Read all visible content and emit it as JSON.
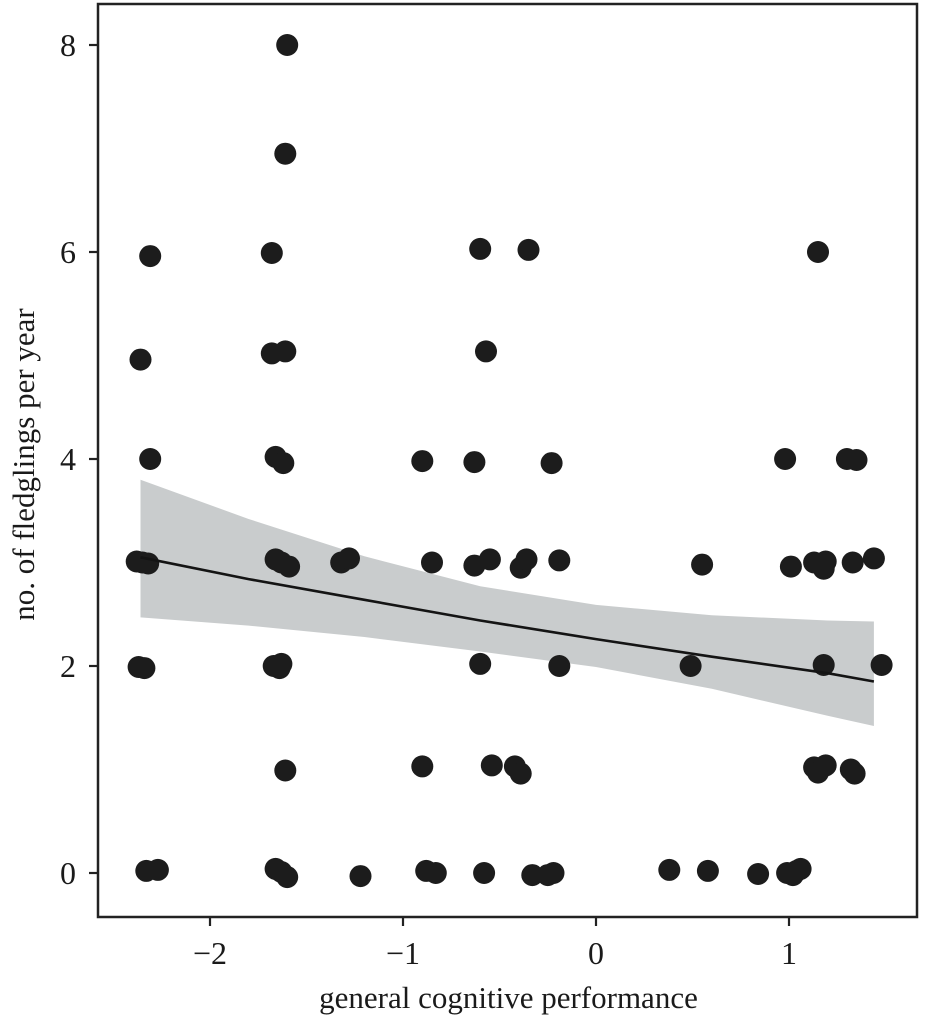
{
  "colors": {
    "points": "#1c1c1c",
    "line": "#141414",
    "ribbon": "#c9cccd",
    "frame": "#222222",
    "background": "#ffffff"
  },
  "chart_data": {
    "type": "scatter",
    "title": "",
    "xlabel": "general cognitive performance",
    "ylabel": "no. of fledglings per year",
    "xlim": [
      -2.55,
      1.65
    ],
    "ylim": [
      -0.4,
      8.3
    ],
    "xticks": [
      -2,
      -1,
      0,
      1
    ],
    "yticks": [
      0,
      2,
      4,
      6,
      8
    ],
    "xtick_labels": [
      "−2",
      "−1",
      "0",
      "1"
    ],
    "ytick_labels": [
      "0",
      "2",
      "4",
      "6",
      "8"
    ],
    "grid": false,
    "legend": "none",
    "series": [
      {
        "points": [
          {
            "x": -1.6,
            "y": 8.0
          },
          {
            "x": -1.61,
            "y": 6.95
          },
          {
            "x": -2.31,
            "y": 5.96
          },
          {
            "x": -1.68,
            "y": 5.99
          },
          {
            "x": -0.6,
            "y": 6.03
          },
          {
            "x": -0.35,
            "y": 6.02
          },
          {
            "x": 1.15,
            "y": 6.0
          },
          {
            "x": -2.36,
            "y": 4.96
          },
          {
            "x": -1.68,
            "y": 5.02
          },
          {
            "x": -1.61,
            "y": 5.04
          },
          {
            "x": -0.57,
            "y": 5.04
          },
          {
            "x": -2.31,
            "y": 4.0
          },
          {
            "x": -1.66,
            "y": 4.02
          },
          {
            "x": -1.62,
            "y": 3.96
          },
          {
            "x": -0.9,
            "y": 3.98
          },
          {
            "x": -0.63,
            "y": 3.97
          },
          {
            "x": -0.23,
            "y": 3.96
          },
          {
            "x": 0.98,
            "y": 4.0
          },
          {
            "x": 1.3,
            "y": 4.0
          },
          {
            "x": 1.35,
            "y": 3.99
          },
          {
            "x": -2.38,
            "y": 3.01
          },
          {
            "x": -2.35,
            "y": 3.0
          },
          {
            "x": -2.32,
            "y": 2.99
          },
          {
            "x": -1.66,
            "y": 3.03
          },
          {
            "x": -1.63,
            "y": 3.0
          },
          {
            "x": -1.59,
            "y": 2.96
          },
          {
            "x": -1.32,
            "y": 3.0
          },
          {
            "x": -1.28,
            "y": 3.04
          },
          {
            "x": -0.85,
            "y": 3.0
          },
          {
            "x": -0.63,
            "y": 2.97
          },
          {
            "x": -0.55,
            "y": 3.03
          },
          {
            "x": -0.39,
            "y": 2.95
          },
          {
            "x": -0.36,
            "y": 3.03
          },
          {
            "x": -0.19,
            "y": 3.02
          },
          {
            "x": 0.55,
            "y": 2.98
          },
          {
            "x": 1.01,
            "y": 2.96
          },
          {
            "x": 1.13,
            "y": 3.0
          },
          {
            "x": 1.18,
            "y": 2.94
          },
          {
            "x": 1.19,
            "y": 3.01
          },
          {
            "x": 1.33,
            "y": 3.0
          },
          {
            "x": 1.44,
            "y": 3.04
          },
          {
            "x": -2.37,
            "y": 1.99
          },
          {
            "x": -2.34,
            "y": 1.98
          },
          {
            "x": -1.67,
            "y": 2.0
          },
          {
            "x": -1.63,
            "y": 2.02
          },
          {
            "x": -1.64,
            "y": 1.98
          },
          {
            "x": -0.6,
            "y": 2.02
          },
          {
            "x": -0.19,
            "y": 2.0
          },
          {
            "x": 0.49,
            "y": 2.0
          },
          {
            "x": 1.18,
            "y": 2.01
          },
          {
            "x": 1.48,
            "y": 2.01
          },
          {
            "x": -1.61,
            "y": 0.99
          },
          {
            "x": -0.9,
            "y": 1.03
          },
          {
            "x": -0.54,
            "y": 1.04
          },
          {
            "x": -0.42,
            "y": 1.03
          },
          {
            "x": -0.39,
            "y": 0.96
          },
          {
            "x": 1.13,
            "y": 1.02
          },
          {
            "x": 1.15,
            "y": 0.97
          },
          {
            "x": 1.19,
            "y": 1.04
          },
          {
            "x": 1.32,
            "y": 1.0
          },
          {
            "x": 1.34,
            "y": 0.96
          },
          {
            "x": -2.33,
            "y": 0.02
          },
          {
            "x": -2.27,
            "y": 0.03
          },
          {
            "x": -1.66,
            "y": 0.04
          },
          {
            "x": -1.63,
            "y": 0.01
          },
          {
            "x": -1.6,
            "y": -0.04
          },
          {
            "x": -1.22,
            "y": -0.03
          },
          {
            "x": -0.88,
            "y": 0.02
          },
          {
            "x": -0.83,
            "y": 0.0
          },
          {
            "x": -0.58,
            "y": 0.0
          },
          {
            "x": -0.33,
            "y": -0.02
          },
          {
            "x": -0.25,
            "y": -0.02
          },
          {
            "x": -0.22,
            "y": 0.0
          },
          {
            "x": 0.38,
            "y": 0.03
          },
          {
            "x": 0.58,
            "y": 0.02
          },
          {
            "x": 0.84,
            "y": -0.01
          },
          {
            "x": 0.99,
            "y": 0.0
          },
          {
            "x": 1.02,
            "y": -0.02
          },
          {
            "x": 1.04,
            "y": 0.02
          },
          {
            "x": 1.06,
            "y": 0.04
          }
        ]
      }
    ],
    "fit": {
      "type": "line",
      "points": [
        {
          "x": -2.36,
          "y": 3.05
        },
        {
          "x": -1.8,
          "y": 2.84
        },
        {
          "x": -1.2,
          "y": 2.64
        },
        {
          "x": -0.6,
          "y": 2.44
        },
        {
          "x": 0.0,
          "y": 2.26
        },
        {
          "x": 0.6,
          "y": 2.09
        },
        {
          "x": 1.2,
          "y": 1.93
        },
        {
          "x": 1.44,
          "y": 1.85
        }
      ],
      "ci_upper": [
        {
          "x": -2.36,
          "y": 3.8
        },
        {
          "x": -1.8,
          "y": 3.42
        },
        {
          "x": -1.2,
          "y": 3.06
        },
        {
          "x": -0.6,
          "y": 2.77
        },
        {
          "x": 0.0,
          "y": 2.59
        },
        {
          "x": 0.6,
          "y": 2.49
        },
        {
          "x": 1.2,
          "y": 2.44
        },
        {
          "x": 1.44,
          "y": 2.43
        }
      ],
      "ci_lower": [
        {
          "x": -2.36,
          "y": 2.47
        },
        {
          "x": -1.8,
          "y": 2.39
        },
        {
          "x": -1.2,
          "y": 2.28
        },
        {
          "x": -0.6,
          "y": 2.14
        },
        {
          "x": 0.0,
          "y": 1.99
        },
        {
          "x": 0.6,
          "y": 1.78
        },
        {
          "x": 1.2,
          "y": 1.52
        },
        {
          "x": 1.44,
          "y": 1.42
        }
      ]
    }
  }
}
